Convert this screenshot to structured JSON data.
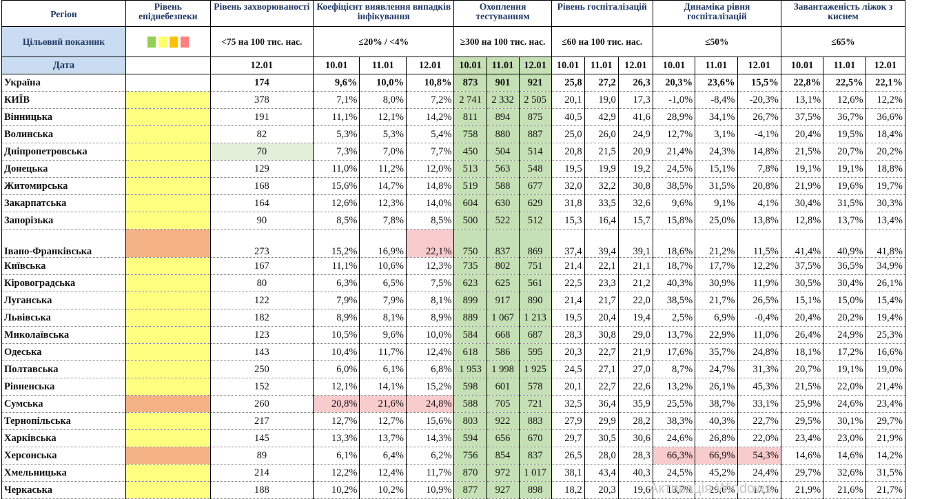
{
  "headers": {
    "region": "Регіон",
    "epi_level": "Рівень епіднебезпеки",
    "incidence": "Рівень захворюваності",
    "detection": "Коефіцієнт виявлення випадків інфікування",
    "testing": "Охоплення тестуванням",
    "hospital": "Рівень госпіталізацій",
    "dynamics": "Динаміка рівня госпіталізацій",
    "beds": "Завантаженість ліжок з киснем"
  },
  "targets": {
    "label": "Цільовий показник",
    "incidence": "<75 на 100 тис. нас.",
    "detection": "≤20% / <4%",
    "testing": "≥300 на 100 тис. нас.",
    "hospital": "≤60 на 100 тис. нас.",
    "dynamics": "≤50%",
    "beds": "≤65%"
  },
  "legend_colors": [
    "#92d050",
    "#ffff66",
    "#ffc000",
    "#ff7f7f"
  ],
  "date_row": {
    "label": "Дата",
    "incidence": "12.01",
    "dates": [
      "10.01",
      "11.01",
      "12.01"
    ]
  },
  "colors": {
    "yellow": "#ffff7f",
    "orange": "#f4b183",
    "light_green": "#e2efd9",
    "green": "#c5e0b4",
    "red": "#f8cbcd",
    "header_text": "#1f3864"
  },
  "ukraine": {
    "name": "Україна",
    "incidence": "174",
    "detection": [
      "9,6%",
      "10,0%",
      "10,8%"
    ],
    "testing": [
      "873",
      "901",
      "921"
    ],
    "hospital": [
      "25,8",
      "27,2",
      "26,3"
    ],
    "dynamics": [
      "20,3%",
      "23,6%",
      "15,5%"
    ],
    "beds": [
      "22,8%",
      "22,5%",
      "22,1%"
    ]
  },
  "rows": [
    {
      "name": "КИЇВ",
      "level": "yellow",
      "incidence": "378",
      "detection": [
        "7,1%",
        "8,0%",
        "7,2%"
      ],
      "testing": [
        "2 741",
        "2 332",
        "2 505"
      ],
      "hospital": [
        "20,1",
        "19,0",
        "17,3"
      ],
      "dynamics": [
        "-1,0%",
        "-8,4%",
        "-20,3%"
      ],
      "beds": [
        "13,1%",
        "12,6%",
        "12,2%"
      ]
    },
    {
      "name": "Вінницька",
      "level": "yellow",
      "incidence": "191",
      "detection": [
        "11,1%",
        "12,1%",
        "14,2%"
      ],
      "testing": [
        "811",
        "894",
        "875"
      ],
      "hospital": [
        "40,5",
        "42,9",
        "41,6"
      ],
      "dynamics": [
        "28,9%",
        "34,1%",
        "26,7%"
      ],
      "beds": [
        "37,5%",
        "36,7%",
        "36,6%"
      ]
    },
    {
      "name": "Волинська",
      "level": "yellow",
      "incidence": "82",
      "detection": [
        "5,3%",
        "5,3%",
        "5,4%"
      ],
      "testing": [
        "758",
        "880",
        "887"
      ],
      "hospital": [
        "25,0",
        "26,0",
        "24,9"
      ],
      "dynamics": [
        "12,7%",
        "3,1%",
        "-4,1%"
      ],
      "beds": [
        "20,4%",
        "19,5%",
        "18,4%"
      ]
    },
    {
      "name": "Дніпропетровська",
      "level": "yellow",
      "incidence": "70",
      "incidence_ok": true,
      "detection": [
        "7,3%",
        "7,0%",
        "7,7%"
      ],
      "testing": [
        "450",
        "504",
        "514"
      ],
      "hospital": [
        "20,8",
        "21,5",
        "20,9"
      ],
      "dynamics": [
        "21,4%",
        "24,3%",
        "14,8%"
      ],
      "beds": [
        "21,5%",
        "20,7%",
        "20,2%"
      ]
    },
    {
      "name": "Донецька",
      "level": "yellow",
      "incidence": "129",
      "detection": [
        "11,0%",
        "11,2%",
        "12,0%"
      ],
      "testing": [
        "513",
        "563",
        "548"
      ],
      "hospital": [
        "19,5",
        "19,9",
        "19,2"
      ],
      "dynamics": [
        "24,5%",
        "15,1%",
        "7,8%"
      ],
      "beds": [
        "19,1%",
        "19,1%",
        "18,8%"
      ]
    },
    {
      "name": "Житомирська",
      "level": "yellow",
      "incidence": "168",
      "detection": [
        "15,6%",
        "14,7%",
        "14,8%"
      ],
      "testing": [
        "519",
        "588",
        "677"
      ],
      "hospital": [
        "32,0",
        "32,2",
        "30,8"
      ],
      "dynamics": [
        "38,5%",
        "31,5%",
        "20,8%"
      ],
      "beds": [
        "21,9%",
        "19,6%",
        "19,7%"
      ]
    },
    {
      "name": "Закарпатська",
      "level": "yellow",
      "incidence": "164",
      "detection": [
        "12,6%",
        "12,3%",
        "14,0%"
      ],
      "testing": [
        "604",
        "630",
        "629"
      ],
      "hospital": [
        "31,8",
        "33,5",
        "32,6"
      ],
      "dynamics": [
        "9,6%",
        "9,1%",
        "4,1%"
      ],
      "beds": [
        "30,4%",
        "31,5%",
        "30,3%"
      ]
    },
    {
      "name": "Запорізька",
      "level": "yellow",
      "incidence": "90",
      "detection": [
        "8,5%",
        "7,8%",
        "8,5%"
      ],
      "testing": [
        "500",
        "522",
        "512"
      ],
      "hospital": [
        "15,3",
        "16,4",
        "15,7"
      ],
      "dynamics": [
        "15,8%",
        "25,0%",
        "13,8%"
      ],
      "beds": [
        "12,8%",
        "13,7%",
        "13,4%"
      ]
    },
    {
      "name": "Івано-Франківська",
      "level": "orange",
      "tall": true,
      "incidence": "273",
      "detection": [
        "15,2%",
        "16,9%",
        "22,1%"
      ],
      "detection_red": [
        false,
        false,
        true
      ],
      "testing": [
        "750",
        "837",
        "869"
      ],
      "hospital": [
        "37,4",
        "39,4",
        "39,1"
      ],
      "dynamics": [
        "18,6%",
        "21,2%",
        "11,5%"
      ],
      "beds": [
        "41,4%",
        "40,9%",
        "41,8%"
      ]
    },
    {
      "name": "Київська",
      "level": "yellow",
      "incidence": "167",
      "detection": [
        "11,1%",
        "10,6%",
        "12,3%"
      ],
      "testing": [
        "735",
        "802",
        "751"
      ],
      "hospital": [
        "21,4",
        "22,1",
        "21,1"
      ],
      "dynamics": [
        "18,7%",
        "17,7%",
        "12,2%"
      ],
      "beds": [
        "37,5%",
        "36,5%",
        "34,9%"
      ]
    },
    {
      "name": "Кіровоградська",
      "level": "yellow",
      "incidence": "80",
      "detection": [
        "6,3%",
        "6,5%",
        "7,5%"
      ],
      "testing": [
        "623",
        "625",
        "561"
      ],
      "hospital": [
        "22,5",
        "23,3",
        "21,2"
      ],
      "dynamics": [
        "40,3%",
        "30,9%",
        "11,9%"
      ],
      "beds": [
        "30,5%",
        "30,4%",
        "26,1%"
      ]
    },
    {
      "name": "Луганська",
      "level": "yellow",
      "incidence": "122",
      "detection": [
        "7,9%",
        "7,9%",
        "8,1%"
      ],
      "testing": [
        "899",
        "917",
        "890"
      ],
      "hospital": [
        "21,4",
        "21,7",
        "22,0"
      ],
      "dynamics": [
        "38,5%",
        "21,7%",
        "26,5%"
      ],
      "beds": [
        "15,1%",
        "15,0%",
        "15,4%"
      ]
    },
    {
      "name": "Львівська",
      "level": "yellow",
      "incidence": "182",
      "detection": [
        "8,9%",
        "8,1%",
        "8,9%"
      ],
      "testing": [
        "889",
        "1 067",
        "1 213"
      ],
      "hospital": [
        "19,5",
        "20,4",
        "19,4"
      ],
      "dynamics": [
        "2,5%",
        "6,9%",
        "-0,4%"
      ],
      "beds": [
        "20,4%",
        "20,2%",
        "19,4%"
      ]
    },
    {
      "name": "Миколаївська",
      "level": "yellow",
      "incidence": "123",
      "detection": [
        "10,5%",
        "9,6%",
        "10,0%"
      ],
      "testing": [
        "584",
        "668",
        "687"
      ],
      "hospital": [
        "28,3",
        "30,8",
        "29,0"
      ],
      "dynamics": [
        "13,7%",
        "22,9%",
        "11,0%"
      ],
      "beds": [
        "26,4%",
        "24,9%",
        "25,3%"
      ]
    },
    {
      "name": "Одеська",
      "level": "yellow",
      "incidence": "143",
      "detection": [
        "10,4%",
        "11,7%",
        "12,4%"
      ],
      "testing": [
        "618",
        "586",
        "595"
      ],
      "hospital": [
        "20,3",
        "22,7",
        "21,9"
      ],
      "dynamics": [
        "17,6%",
        "35,7%",
        "24,8%"
      ],
      "beds": [
        "18,1%",
        "17,2%",
        "16,6%"
      ]
    },
    {
      "name": "Полтавська",
      "level": "yellow",
      "incidence": "250",
      "detection": [
        "6,0%",
        "6,1%",
        "6,8%"
      ],
      "testing": [
        "1 953",
        "1 998",
        "1 925"
      ],
      "hospital": [
        "24,5",
        "27,1",
        "27,0"
      ],
      "dynamics": [
        "8,7%",
        "24,7%",
        "31,3%"
      ],
      "beds": [
        "20,7%",
        "19,1%",
        "19,0%"
      ]
    },
    {
      "name": "Рівненська",
      "level": "yellow",
      "incidence": "152",
      "detection": [
        "12,1%",
        "14,1%",
        "15,2%"
      ],
      "testing": [
        "598",
        "601",
        "578"
      ],
      "hospital": [
        "20,1",
        "22,7",
        "22,6"
      ],
      "dynamics": [
        "13,2%",
        "26,1%",
        "45,3%"
      ],
      "beds": [
        "21,5%",
        "22,0%",
        "21,4%"
      ]
    },
    {
      "name": "Сумська",
      "level": "orange",
      "incidence": "260",
      "detection": [
        "20,8%",
        "21,6%",
        "24,8%"
      ],
      "detection_red": [
        true,
        true,
        true
      ],
      "testing": [
        "588",
        "705",
        "721"
      ],
      "hospital": [
        "32,5",
        "36,4",
        "35,9"
      ],
      "dynamics": [
        "25,5%",
        "38,7%",
        "33,1%"
      ],
      "beds": [
        "25,9%",
        "24,6%",
        "23,4%"
      ]
    },
    {
      "name": "Тернопільська",
      "level": "yellow",
      "incidence": "217",
      "detection": [
        "12,7%",
        "12,7%",
        "15,6%"
      ],
      "testing": [
        "803",
        "922",
        "883"
      ],
      "hospital": [
        "27,9",
        "29,9",
        "28,2"
      ],
      "dynamics": [
        "38,3%",
        "40,3%",
        "22,7%"
      ],
      "beds": [
        "29,5%",
        "30,1%",
        "29,7%"
      ]
    },
    {
      "name": "Харківська",
      "level": "yellow",
      "incidence": "145",
      "detection": [
        "13,3%",
        "13,7%",
        "14,3%"
      ],
      "testing": [
        "594",
        "656",
        "670"
      ],
      "hospital": [
        "29,7",
        "30,5",
        "30,6"
      ],
      "dynamics": [
        "24,6%",
        "26,8%",
        "22,0%"
      ],
      "beds": [
        "23,4%",
        "23,0%",
        "21,9%"
      ]
    },
    {
      "name": "Херсонська",
      "level": "orange",
      "incidence": "89",
      "detection": [
        "6,1%",
        "6,4%",
        "6,2%"
      ],
      "testing": [
        "756",
        "854",
        "837"
      ],
      "hospital": [
        "26,5",
        "28,0",
        "28,3"
      ],
      "dynamics": [
        "66,3%",
        "66,9%",
        "54,3%"
      ],
      "dynamics_red": true,
      "beds": [
        "14,6%",
        "14,6%",
        "14,2%"
      ]
    },
    {
      "name": "Хмельницька",
      "level": "yellow",
      "incidence": "214",
      "detection": [
        "12,2%",
        "12,4%",
        "11,7%"
      ],
      "testing": [
        "870",
        "972",
        "1 017"
      ],
      "hospital": [
        "38,1",
        "43,4",
        "40,3"
      ],
      "dynamics": [
        "24,5%",
        "45,2%",
        "24,4%"
      ],
      "beds": [
        "29,7%",
        "32,6%",
        "31,5%"
      ]
    },
    {
      "name": "Черкаська",
      "level": "yellow",
      "incidence": "188",
      "detection": [
        "10,2%",
        "10,2%",
        "10,9%"
      ],
      "testing": [
        "877",
        "927",
        "898"
      ],
      "hospital": [
        "18,2",
        "20,3",
        "19,6"
      ],
      "dynamics": [
        "13,7%",
        "29,6%",
        "17,1%"
      ],
      "beds": [
        "21,9%",
        "21,6%",
        "21,7%"
      ]
    }
  ],
  "watermark": "Активація Windows"
}
